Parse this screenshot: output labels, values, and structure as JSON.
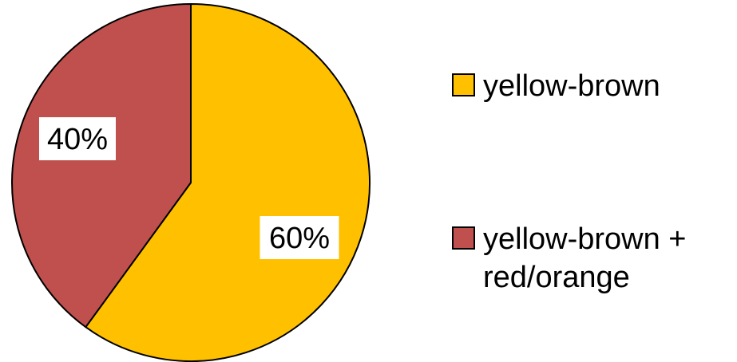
{
  "chart_data": {
    "type": "pie",
    "title": "",
    "categories": [
      "yellow-brown",
      "yellow-brown + red/orange"
    ],
    "values": [
      60,
      40
    ],
    "data_labels": [
      "60%",
      "40%"
    ],
    "colors": [
      "#FFC000",
      "#C0504D"
    ],
    "legend": {
      "placement": "right",
      "entries": [
        {
          "lines": [
            "yellow-brown"
          ]
        },
        {
          "lines": [
            "yellow-brown +",
            "red/orange"
          ]
        }
      ]
    }
  }
}
